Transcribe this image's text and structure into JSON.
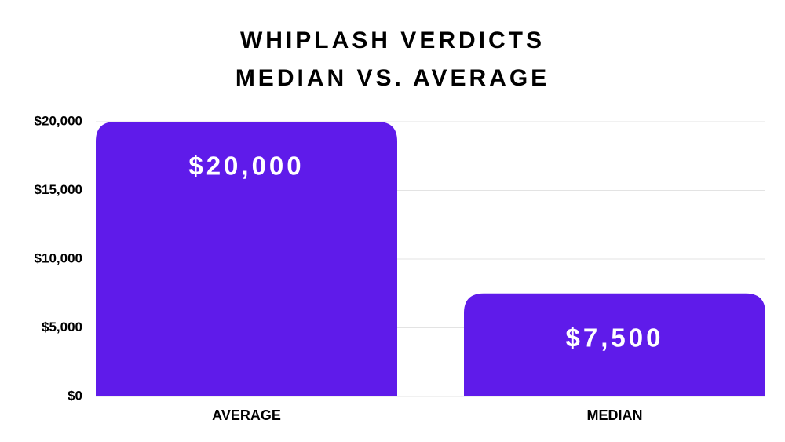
{
  "chart_data": {
    "type": "bar",
    "title": "WHIPLASH VERDICTS",
    "subtitle": "MEDIAN VS. AVERAGE",
    "categories": [
      "AVERAGE",
      "MEDIAN"
    ],
    "values": [
      20000,
      7500
    ],
    "value_labels": [
      "$20,000",
      "$7,500"
    ],
    "color": "#5f1bea",
    "ylim": [
      0,
      20000
    ],
    "yticks": [
      {
        "value": 0,
        "label": "$0"
      },
      {
        "value": 5000,
        "label": "$5,000"
      },
      {
        "value": 10000,
        "label": "$10,000"
      },
      {
        "value": 15000,
        "label": "$15,000"
      },
      {
        "value": 20000,
        "label": "$20,000"
      }
    ],
    "grid": true
  }
}
